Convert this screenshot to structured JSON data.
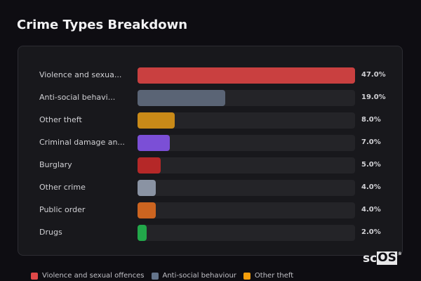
{
  "chart_data": {
    "type": "bar",
    "orientation": "horizontal",
    "title": "Crime Types Breakdown",
    "unit": "%",
    "categories": [
      "Violence and sexua...",
      "Anti-social behavi...",
      "Other theft",
      "Criminal damage an...",
      "Burglary",
      "Other crime",
      "Public order",
      "Drugs"
    ],
    "values": [
      47.0,
      19.0,
      8.0,
      7.0,
      5.0,
      4.0,
      4.0,
      2.0
    ],
    "value_labels": [
      "47.0%",
      "19.0%",
      "8.0%",
      "7.0%",
      "5.0%",
      "4.0%",
      "4.0%",
      "2.0%"
    ],
    "colors": [
      "#c94040",
      "#5a6475",
      "#c98a18",
      "#7b4fd6",
      "#b52828",
      "#8a93a3",
      "#cc6420",
      "#22a84a"
    ],
    "xlim": [
      0,
      47
    ],
    "legend": [
      {
        "label": "Violence and sexual offences",
        "color": "#e04848"
      },
      {
        "label": "Anti-social behaviour",
        "color": "#64748b"
      },
      {
        "label": "Other theft",
        "color": "#f59e0b"
      }
    ],
    "legend_position": "bottom"
  },
  "brand": {
    "prefix": "sc",
    "boxed": "OS",
    "mark": "®"
  }
}
